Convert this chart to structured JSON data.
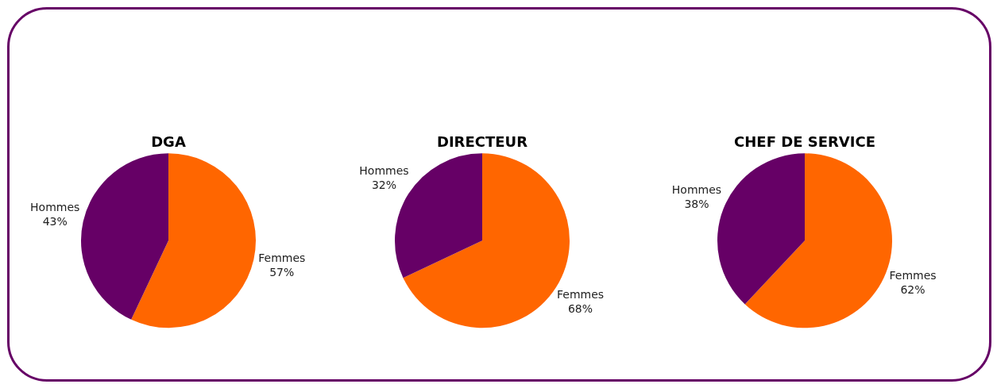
{
  "chart_data": [
    {
      "type": "pie",
      "title": "DGA",
      "categories": [
        "Femmes",
        "Hommes"
      ],
      "values": [
        57,
        43
      ],
      "colors": [
        "#ff6600",
        "#660066"
      ],
      "value_labels": [
        "57%",
        "43%"
      ]
    },
    {
      "type": "pie",
      "title": "DIRECTEUR",
      "categories": [
        "Femmes",
        "Hommes"
      ],
      "values": [
        68,
        32
      ],
      "colors": [
        "#ff6600",
        "#660066"
      ],
      "value_labels": [
        "68%",
        "32%"
      ]
    },
    {
      "type": "pie",
      "title": "CHEF DE SERVICE",
      "categories": [
        "Femmes",
        "Hommes"
      ],
      "values": [
        62,
        38
      ],
      "colors": [
        "#ff6600",
        "#660066"
      ],
      "value_labels": [
        "62%",
        "38%"
      ]
    }
  ]
}
